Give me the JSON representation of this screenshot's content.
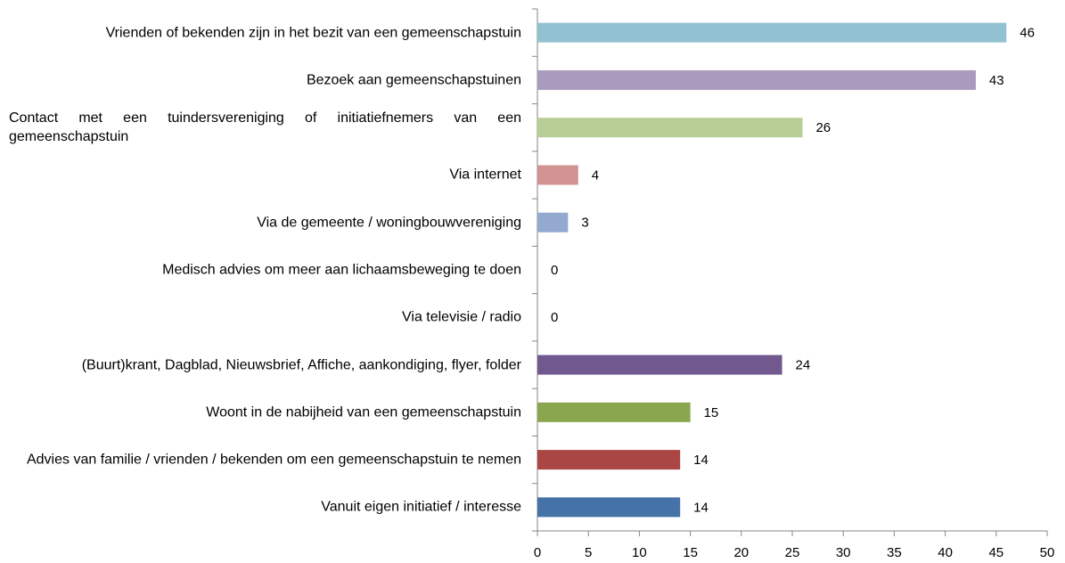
{
  "chart_data": {
    "type": "bar",
    "orientation": "horizontal",
    "categories": [
      "Vrienden of bekenden zijn in het bezit van een gemeenschapstuin",
      "Bezoek aan gemeenschapstuinen",
      "Contact met een tuindersvereniging of initiatiefnemers van een gemeenschapstuin",
      "Via internet",
      "Via de gemeente / woningbouwvereniging",
      "Medisch advies  om meer aan lichaamsbeweging te doen",
      "Via televisie / radio",
      "(Buurt)krant, Dagblad, Nieuwsbrief, Affiche, aankondiging, flyer, folder",
      "Woont in de nabijheid van een gemeenschapstuin",
      "Advies van familie / vrienden / bekenden om een gemeenschapstuin te nemen",
      "Vanuit eigen initiatief / interesse"
    ],
    "values": [
      46,
      43,
      26,
      4,
      3,
      0,
      0,
      24,
      15,
      14,
      14
    ],
    "colors": [
      "#92c1d1",
      "#a99bbd",
      "#b9cd96",
      "#d19392",
      "#93a9cf",
      "#db843d",
      "#4198af",
      "#71588f",
      "#89a54e",
      "#aa4643",
      "#4572a7"
    ],
    "xlim": [
      0,
      50
    ],
    "xticks": [
      0,
      5,
      10,
      15,
      20,
      25,
      30,
      35,
      40,
      45,
      50
    ],
    "grid": false
  }
}
